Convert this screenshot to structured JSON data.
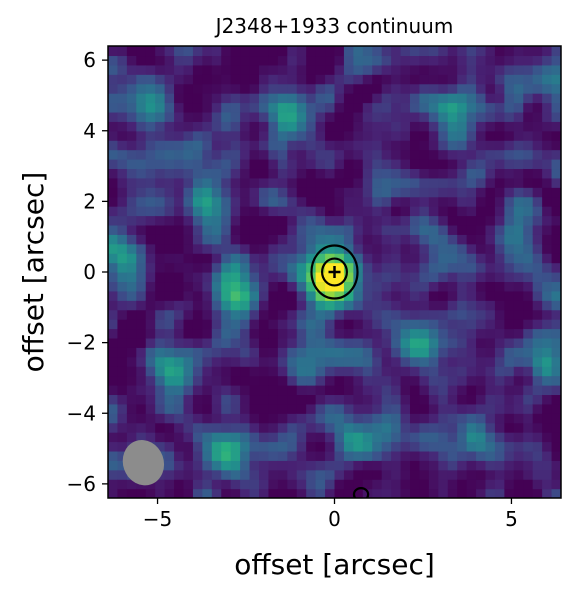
{
  "chart_data": {
    "type": "heatmap",
    "title": "J2348+1933 continuum",
    "xlabel": "offset [arcsec]",
    "ylabel": "offset [arcsec]",
    "xlim": [
      -6.4,
      6.4
    ],
    "ylim": [
      -6.4,
      6.4
    ],
    "x_ticks": [
      {
        "value": -5,
        "label": "−5"
      },
      {
        "value": 0,
        "label": "0"
      },
      {
        "value": 5,
        "label": "5"
      }
    ],
    "y_ticks": [
      {
        "value": -6,
        "label": "−6"
      },
      {
        "value": -4,
        "label": "−4"
      },
      {
        "value": -2,
        "label": "−2"
      },
      {
        "value": 0,
        "label": "0"
      },
      {
        "value": 2,
        "label": "2"
      },
      {
        "value": 4,
        "label": "4"
      },
      {
        "value": 6,
        "label": "6"
      }
    ],
    "colormap": "viridis",
    "grid": false,
    "source": {
      "x": 0.0,
      "y": 0.0,
      "peak": 1.0
    },
    "noise_hotspots": [
      {
        "x": -3.6,
        "y": 2.0,
        "amp": 0.55
      },
      {
        "x": -2.8,
        "y": -0.6,
        "amp": 0.5
      },
      {
        "x": 3.2,
        "y": 4.6,
        "amp": 0.55
      },
      {
        "x": 2.4,
        "y": -2.0,
        "amp": 0.45
      },
      {
        "x": -0.6,
        "y": -2.6,
        "amp": 0.45
      },
      {
        "x": -4.4,
        "y": -2.8,
        "amp": 0.45
      },
      {
        "x": 5.2,
        "y": 1.0,
        "amp": 0.45
      },
      {
        "x": -1.2,
        "y": 4.4,
        "amp": 0.4
      },
      {
        "x": -5.2,
        "y": 4.8,
        "amp": 0.35
      },
      {
        "x": 1.6,
        "y": 2.6,
        "amp": 0.4
      },
      {
        "x": -3.0,
        "y": -5.0,
        "amp": 0.45
      },
      {
        "x": 4.0,
        "y": -4.6,
        "amp": 0.45
      },
      {
        "x": 0.6,
        "y": -4.8,
        "amp": 0.4
      },
      {
        "x": -6.0,
        "y": 0.6,
        "amp": 0.45
      },
      {
        "x": 6.0,
        "y": -2.6,
        "amp": 0.4
      },
      {
        "x": 2.8,
        "y": 0.6,
        "amp": 0.35
      }
    ],
    "contours": [
      {
        "level": "outer",
        "center": [
          0.0,
          0.0
        ],
        "rx": 0.65,
        "ry": 0.75,
        "color": "#000000"
      },
      {
        "level": "inner",
        "center": [
          0.0,
          0.0
        ],
        "rx": 0.35,
        "ry": 0.38,
        "color": "#000000"
      },
      {
        "level": "edge",
        "center": [
          0.75,
          -6.3
        ],
        "rx": 0.2,
        "ry": 0.18,
        "color": "#000000"
      }
    ],
    "source_marker": {
      "x": 0.0,
      "y": 0.0,
      "symbol": "+",
      "color": "#000000"
    },
    "beam": {
      "x": -5.4,
      "y": -5.4,
      "bmaj": 1.3,
      "bmin": 1.15,
      "angle_deg": 20,
      "color": "#8c8c8c"
    }
  }
}
